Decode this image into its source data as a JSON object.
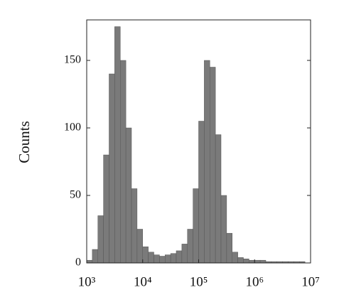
{
  "chart_data": {
    "type": "histogram",
    "y_label": "Counts",
    "xscale": "log",
    "bins": [
      1000,
      1259,
      1585,
      1995,
      2512,
      3162,
      3981,
      5012,
      6310,
      7943,
      10000,
      12589,
      15849,
      19953,
      25119,
      31623,
      39811,
      50119,
      63096,
      79433,
      100000,
      125893,
      158489,
      199526,
      251189,
      316228,
      398107,
      501187,
      630957,
      794328,
      1000000,
      1258925,
      1584893,
      1995262,
      2511886,
      3162278,
      3981072,
      5011872,
      6309573,
      7943282,
      10000000
    ],
    "values": [
      2,
      10,
      35,
      80,
      140,
      175,
      150,
      100,
      55,
      25,
      12,
      8,
      6,
      5,
      6,
      7,
      9,
      14,
      25,
      55,
      105,
      150,
      145,
      95,
      50,
      22,
      8,
      4,
      3,
      2,
      2,
      2,
      1,
      1,
      1,
      1,
      1,
      1,
      1,
      0
    ],
    "color": "#7a7a7a",
    "xlim": [
      1000,
      10000000
    ],
    "xticks": [
      {
        "value": 1000,
        "label": "10³"
      },
      {
        "value": 10000,
        "label": "10⁴"
      },
      {
        "value": 100000,
        "label": "10⁵"
      },
      {
        "value": 1000000,
        "label": "10⁶"
      },
      {
        "value": 10000000,
        "label": "10⁷"
      }
    ],
    "ylim": [
      0,
      180
    ],
    "yticks": [
      0,
      50,
      100,
      150
    ]
  }
}
